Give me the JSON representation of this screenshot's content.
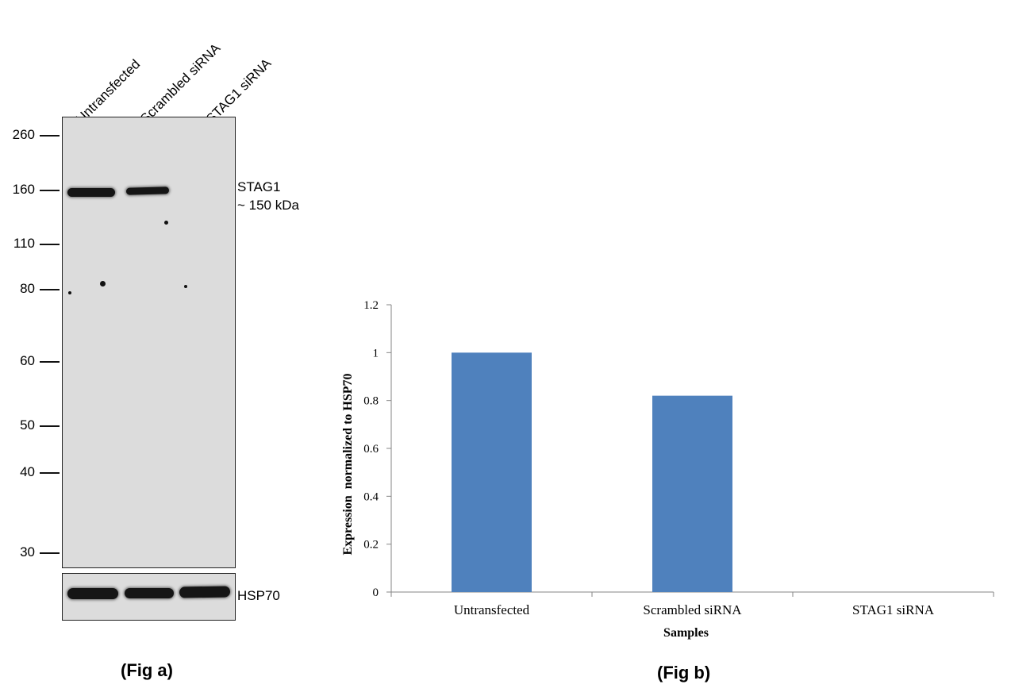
{
  "fig_a": {
    "lanes": [
      "Untransfected",
      "Scrambled siRNA",
      "STAG1 siRNA"
    ],
    "markers": [
      "260",
      "160",
      "110",
      "80",
      "60",
      "50",
      "40",
      "30"
    ],
    "target_label": "STAG1",
    "target_size": "~ 150 kDa",
    "loading_control": "HSP70",
    "caption": "(Fig a)"
  },
  "fig_b": {
    "caption": "(Fig b)"
  },
  "chart_data": {
    "type": "bar",
    "categories": [
      "Untransfected",
      "Scrambled siRNA",
      "STAG1 siRNA"
    ],
    "values": [
      1.0,
      0.82,
      0.0
    ],
    "title": "",
    "xlabel": "Samples",
    "ylabel": "Expression  normalized to HSP70",
    "ylim": [
      0,
      1.2
    ],
    "yticks": [
      "0",
      "0.2",
      "0.4",
      "0.6",
      "0.8",
      "1",
      "1.2"
    ],
    "bar_color": "#4f81bd",
    "grid": false,
    "legend": "none"
  }
}
